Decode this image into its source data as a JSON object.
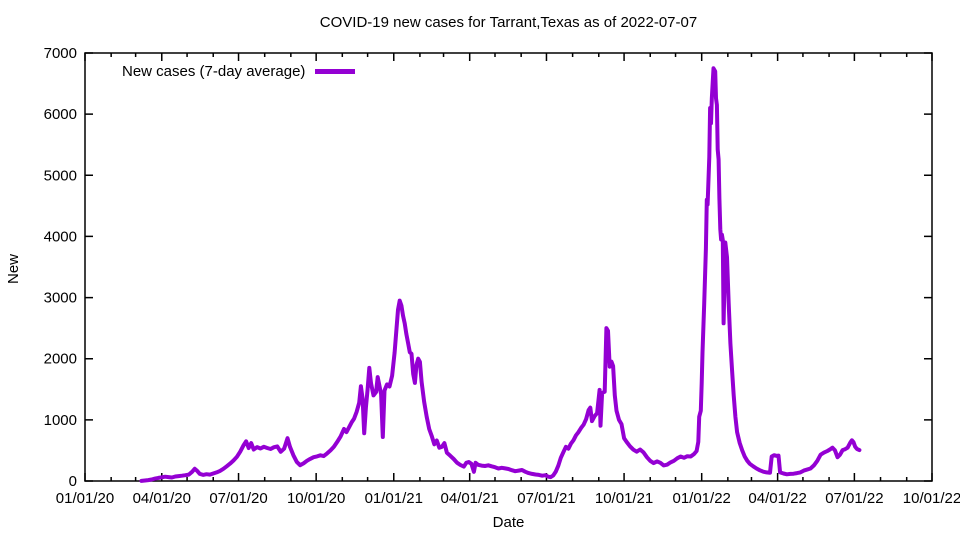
{
  "chart_data": {
    "type": "line",
    "title": "COVID-19 new cases for Tarrant,Texas as of 2022-07-07",
    "xlabel": "Date",
    "ylabel": "New",
    "grid": false,
    "legend_position": "top-left",
    "x_range_dates": [
      "2020-01-01",
      "2022-10-01"
    ],
    "ylim": [
      0,
      7000
    ],
    "x_tick_labels": [
      "01/01/20",
      "04/01/20",
      "07/01/20",
      "10/01/20",
      "01/01/21",
      "04/01/21",
      "07/01/21",
      "10/01/21",
      "01/01/22",
      "04/01/22",
      "07/01/22",
      "10/01/22"
    ],
    "y_tick_labels": [
      "0",
      "1000",
      "2000",
      "3000",
      "4000",
      "5000",
      "6000",
      "7000"
    ],
    "series": [
      {
        "name": "New cases (7-day average)",
        "color": "#9400d3",
        "points": [
          [
            "2020-03-08",
            2
          ],
          [
            "2020-03-12",
            8
          ],
          [
            "2020-03-16",
            15
          ],
          [
            "2020-03-20",
            25
          ],
          [
            "2020-03-24",
            40
          ],
          [
            "2020-03-28",
            50
          ],
          [
            "2020-04-01",
            60
          ],
          [
            "2020-04-05",
            70
          ],
          [
            "2020-04-09",
            64
          ],
          [
            "2020-04-13",
            58
          ],
          [
            "2020-04-17",
            74
          ],
          [
            "2020-04-21",
            80
          ],
          [
            "2020-04-25",
            86
          ],
          [
            "2020-04-29",
            95
          ],
          [
            "2020-05-03",
            105
          ],
          [
            "2020-05-07",
            150
          ],
          [
            "2020-05-10",
            200
          ],
          [
            "2020-05-13",
            165
          ],
          [
            "2020-05-16",
            118
          ],
          [
            "2020-05-20",
            100
          ],
          [
            "2020-05-24",
            112
          ],
          [
            "2020-05-28",
            105
          ],
          [
            "2020-06-01",
            122
          ],
          [
            "2020-06-05",
            140
          ],
          [
            "2020-06-09",
            165
          ],
          [
            "2020-06-13",
            200
          ],
          [
            "2020-06-17",
            240
          ],
          [
            "2020-06-21",
            285
          ],
          [
            "2020-06-25",
            335
          ],
          [
            "2020-06-29",
            395
          ],
          [
            "2020-07-03",
            480
          ],
          [
            "2020-07-07",
            585
          ],
          [
            "2020-07-10",
            650
          ],
          [
            "2020-07-13",
            540
          ],
          [
            "2020-07-16",
            620
          ],
          [
            "2020-07-19",
            515
          ],
          [
            "2020-07-23",
            555
          ],
          [
            "2020-07-27",
            532
          ],
          [
            "2020-07-31",
            560
          ],
          [
            "2020-08-04",
            540
          ],
          [
            "2020-08-08",
            524
          ],
          [
            "2020-08-12",
            552
          ],
          [
            "2020-08-16",
            566
          ],
          [
            "2020-08-20",
            478
          ],
          [
            "2020-08-24",
            528
          ],
          [
            "2020-08-28",
            700
          ],
          [
            "2020-08-31",
            558
          ],
          [
            "2020-09-04",
            420
          ],
          [
            "2020-09-08",
            312
          ],
          [
            "2020-09-12",
            258
          ],
          [
            "2020-09-16",
            288
          ],
          [
            "2020-09-20",
            330
          ],
          [
            "2020-09-24",
            362
          ],
          [
            "2020-09-28",
            390
          ],
          [
            "2020-10-02",
            402
          ],
          [
            "2020-10-06",
            420
          ],
          [
            "2020-10-10",
            408
          ],
          [
            "2020-10-14",
            452
          ],
          [
            "2020-10-18",
            500
          ],
          [
            "2020-10-22",
            560
          ],
          [
            "2020-10-26",
            640
          ],
          [
            "2020-10-30",
            730
          ],
          [
            "2020-11-03",
            850
          ],
          [
            "2020-11-06",
            800
          ],
          [
            "2020-11-09",
            880
          ],
          [
            "2020-11-12",
            958
          ],
          [
            "2020-11-15",
            1020
          ],
          [
            "2020-11-18",
            1130
          ],
          [
            "2020-11-21",
            1280
          ],
          [
            "2020-11-23",
            1550
          ],
          [
            "2020-11-25",
            1345
          ],
          [
            "2020-11-27",
            780
          ],
          [
            "2020-11-29",
            1200
          ],
          [
            "2020-12-01",
            1500
          ],
          [
            "2020-12-03",
            1850
          ],
          [
            "2020-12-05",
            1600
          ],
          [
            "2020-12-08",
            1400
          ],
          [
            "2020-12-11",
            1455
          ],
          [
            "2020-12-13",
            1700
          ],
          [
            "2020-12-15",
            1560
          ],
          [
            "2020-12-17",
            1420
          ],
          [
            "2020-12-19",
            720
          ],
          [
            "2020-12-21",
            1480
          ],
          [
            "2020-12-24",
            1580
          ],
          [
            "2020-12-27",
            1545
          ],
          [
            "2020-12-30",
            1720
          ],
          [
            "2021-01-02",
            2100
          ],
          [
            "2021-01-04",
            2450
          ],
          [
            "2021-01-06",
            2800
          ],
          [
            "2021-01-08",
            2950
          ],
          [
            "2021-01-10",
            2870
          ],
          [
            "2021-01-12",
            2705
          ],
          [
            "2021-01-14",
            2580
          ],
          [
            "2021-01-16",
            2400
          ],
          [
            "2021-01-18",
            2255
          ],
          [
            "2021-01-20",
            2105
          ],
          [
            "2021-01-22",
            2080
          ],
          [
            "2021-01-24",
            1750
          ],
          [
            "2021-01-26",
            1605
          ],
          [
            "2021-01-28",
            1900
          ],
          [
            "2021-01-30",
            2000
          ],
          [
            "2021-02-01",
            1950
          ],
          [
            "2021-02-03",
            1620
          ],
          [
            "2021-02-06",
            1300
          ],
          [
            "2021-02-09",
            1050
          ],
          [
            "2021-02-12",
            850
          ],
          [
            "2021-02-15",
            738
          ],
          [
            "2021-02-18",
            600
          ],
          [
            "2021-02-21",
            662
          ],
          [
            "2021-02-24",
            545
          ],
          [
            "2021-02-27",
            560
          ],
          [
            "2021-03-02",
            620
          ],
          [
            "2021-03-05",
            462
          ],
          [
            "2021-03-09",
            412
          ],
          [
            "2021-03-13",
            360
          ],
          [
            "2021-03-17",
            300
          ],
          [
            "2021-03-21",
            262
          ],
          [
            "2021-03-25",
            235
          ],
          [
            "2021-03-28",
            298
          ],
          [
            "2021-03-31",
            310
          ],
          [
            "2021-04-03",
            282
          ],
          [
            "2021-04-06",
            150
          ],
          [
            "2021-04-08",
            298
          ],
          [
            "2021-04-11",
            265
          ],
          [
            "2021-04-15",
            252
          ],
          [
            "2021-04-19",
            246
          ],
          [
            "2021-04-23",
            256
          ],
          [
            "2021-04-27",
            240
          ],
          [
            "2021-05-01",
            226
          ],
          [
            "2021-05-05",
            205
          ],
          [
            "2021-05-09",
            216
          ],
          [
            "2021-05-13",
            206
          ],
          [
            "2021-05-17",
            196
          ],
          [
            "2021-05-21",
            176
          ],
          [
            "2021-05-25",
            160
          ],
          [
            "2021-05-29",
            170
          ],
          [
            "2021-06-02",
            180
          ],
          [
            "2021-06-06",
            150
          ],
          [
            "2021-06-10",
            130
          ],
          [
            "2021-06-14",
            116
          ],
          [
            "2021-06-18",
            106
          ],
          [
            "2021-06-22",
            100
          ],
          [
            "2021-06-26",
            86
          ],
          [
            "2021-06-30",
            95
          ],
          [
            "2021-07-03",
            70
          ],
          [
            "2021-07-06",
            64
          ],
          [
            "2021-07-09",
            90
          ],
          [
            "2021-07-12",
            150
          ],
          [
            "2021-07-15",
            250
          ],
          [
            "2021-07-18",
            380
          ],
          [
            "2021-07-21",
            470
          ],
          [
            "2021-07-24",
            560
          ],
          [
            "2021-07-27",
            528
          ],
          [
            "2021-07-30",
            610
          ],
          [
            "2021-08-02",
            668
          ],
          [
            "2021-08-05",
            748
          ],
          [
            "2021-08-08",
            800
          ],
          [
            "2021-08-11",
            868
          ],
          [
            "2021-08-14",
            920
          ],
          [
            "2021-08-17",
            1010
          ],
          [
            "2021-08-20",
            1160
          ],
          [
            "2021-08-22",
            1200
          ],
          [
            "2021-08-24",
            980
          ],
          [
            "2021-08-27",
            1058
          ],
          [
            "2021-08-30",
            1110
          ],
          [
            "2021-09-02",
            1490
          ],
          [
            "2021-09-03",
            905
          ],
          [
            "2021-09-05",
            1440
          ],
          [
            "2021-09-08",
            1460
          ],
          [
            "2021-09-10",
            2500
          ],
          [
            "2021-09-12",
            2455
          ],
          [
            "2021-09-14",
            1870
          ],
          [
            "2021-09-16",
            1955
          ],
          [
            "2021-09-18",
            1880
          ],
          [
            "2021-09-20",
            1400
          ],
          [
            "2021-09-22",
            1150
          ],
          [
            "2021-09-25",
            1000
          ],
          [
            "2021-09-28",
            930
          ],
          [
            "2021-10-01",
            700
          ],
          [
            "2021-10-04",
            640
          ],
          [
            "2021-10-08",
            568
          ],
          [
            "2021-10-12",
            512
          ],
          [
            "2021-10-16",
            480
          ],
          [
            "2021-10-20",
            515
          ],
          [
            "2021-10-24",
            468
          ],
          [
            "2021-10-28",
            390
          ],
          [
            "2021-11-01",
            330
          ],
          [
            "2021-11-05",
            292
          ],
          [
            "2021-11-09",
            320
          ],
          [
            "2021-11-13",
            298
          ],
          [
            "2021-11-17",
            255
          ],
          [
            "2021-11-21",
            266
          ],
          [
            "2021-11-25",
            305
          ],
          [
            "2021-11-29",
            330
          ],
          [
            "2021-12-03",
            372
          ],
          [
            "2021-12-07",
            400
          ],
          [
            "2021-12-11",
            380
          ],
          [
            "2021-12-15",
            406
          ],
          [
            "2021-12-19",
            400
          ],
          [
            "2021-12-23",
            442
          ],
          [
            "2021-12-26",
            490
          ],
          [
            "2021-12-28",
            640
          ],
          [
            "2021-12-29",
            1050
          ],
          [
            "2021-12-31",
            1150
          ],
          [
            "2022-01-01",
            1600
          ],
          [
            "2022-01-02",
            2100
          ],
          [
            "2022-01-04",
            2900
          ],
          [
            "2022-01-06",
            3800
          ],
          [
            "2022-01-07",
            4600
          ],
          [
            "2022-01-08",
            4520
          ],
          [
            "2022-01-10",
            5300
          ],
          [
            "2022-01-11",
            6100
          ],
          [
            "2022-01-12",
            5850
          ],
          [
            "2022-01-13",
            6250
          ],
          [
            "2022-01-15",
            6750
          ],
          [
            "2022-01-17",
            6700
          ],
          [
            "2022-01-18",
            6260
          ],
          [
            "2022-01-19",
            6150
          ],
          [
            "2022-01-20",
            5420
          ],
          [
            "2022-01-21",
            5260
          ],
          [
            "2022-01-22",
            4620
          ],
          [
            "2022-01-23",
            4120
          ],
          [
            "2022-01-24",
            3950
          ],
          [
            "2022-01-25",
            4030
          ],
          [
            "2022-01-26",
            3940
          ],
          [
            "2022-01-27",
            2580
          ],
          [
            "2022-01-28",
            3260
          ],
          [
            "2022-01-29",
            3900
          ],
          [
            "2022-01-31",
            3660
          ],
          [
            "2022-02-02",
            2900
          ],
          [
            "2022-02-04",
            2250
          ],
          [
            "2022-02-06",
            1800
          ],
          [
            "2022-02-08",
            1400
          ],
          [
            "2022-02-10",
            1050
          ],
          [
            "2022-02-12",
            800
          ],
          [
            "2022-02-15",
            622
          ],
          [
            "2022-02-18",
            500
          ],
          [
            "2022-02-21",
            400
          ],
          [
            "2022-02-24",
            332
          ],
          [
            "2022-02-27",
            282
          ],
          [
            "2022-03-03",
            240
          ],
          [
            "2022-03-07",
            205
          ],
          [
            "2022-03-11",
            175
          ],
          [
            "2022-03-15",
            152
          ],
          [
            "2022-03-19",
            140
          ],
          [
            "2022-03-23",
            136
          ],
          [
            "2022-03-25",
            400
          ],
          [
            "2022-03-28",
            422
          ],
          [
            "2022-03-31",
            410
          ],
          [
            "2022-04-02",
            415
          ],
          [
            "2022-04-04",
            140
          ],
          [
            "2022-04-08",
            122
          ],
          [
            "2022-04-12",
            110
          ],
          [
            "2022-04-16",
            116
          ],
          [
            "2022-04-20",
            120
          ],
          [
            "2022-04-24",
            130
          ],
          [
            "2022-04-28",
            140
          ],
          [
            "2022-05-02",
            170
          ],
          [
            "2022-05-06",
            186
          ],
          [
            "2022-05-10",
            205
          ],
          [
            "2022-05-14",
            255
          ],
          [
            "2022-05-18",
            330
          ],
          [
            "2022-05-22",
            430
          ],
          [
            "2022-05-26",
            465
          ],
          [
            "2022-05-30",
            490
          ],
          [
            "2022-06-02",
            515
          ],
          [
            "2022-06-05",
            545
          ],
          [
            "2022-06-08",
            500
          ],
          [
            "2022-06-11",
            390
          ],
          [
            "2022-06-14",
            430
          ],
          [
            "2022-06-17",
            505
          ],
          [
            "2022-06-20",
            520
          ],
          [
            "2022-06-23",
            545
          ],
          [
            "2022-06-26",
            625
          ],
          [
            "2022-06-28",
            665
          ],
          [
            "2022-06-30",
            635
          ],
          [
            "2022-07-02",
            560
          ],
          [
            "2022-07-04",
            525
          ],
          [
            "2022-07-07",
            505
          ]
        ]
      }
    ]
  }
}
